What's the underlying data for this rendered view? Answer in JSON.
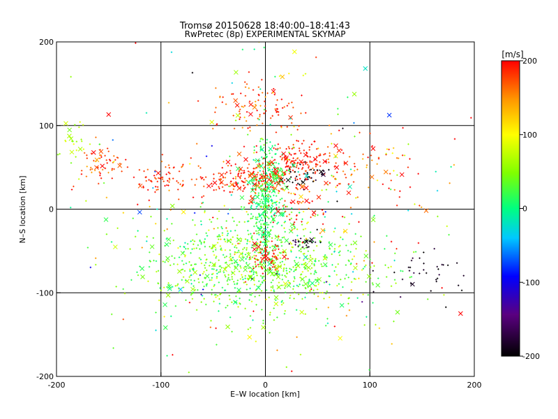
{
  "chart_data": {
    "type": "scatter",
    "title": "Tromsø 20150628 18:40:00–18:41:43",
    "subtitle": "RwPretec (8p) EXPERIMENTAL SKYMAP",
    "xlabel": "E–W location [km]",
    "ylabel": "N–S location [km]",
    "xlim": [
      -200,
      200
    ],
    "ylim": [
      -200,
      200
    ],
    "xticks": [
      -200,
      -100,
      0,
      100,
      200
    ],
    "yticks": [
      -200,
      -100,
      0,
      100,
      200
    ],
    "grid": true,
    "colorbar": {
      "label": "[m/s]",
      "min": -200,
      "max": 200,
      "ticks": [
        200,
        100,
        0,
        -100,
        -200
      ],
      "colormap": [
        "#000000",
        "#5a0080",
        "#0000ff",
        "#00c8ff",
        "#00ff80",
        "#80ff00",
        "#ffff00",
        "#ff9600",
        "#ff0000"
      ]
    },
    "markers": {
      "small": "+",
      "large": "x"
    },
    "clusters": [
      {
        "cx": -5,
        "cy": -65,
        "sx": 55,
        "sy": 30,
        "n": 900,
        "v": 40,
        "vs": 25
      },
      {
        "cx": 0,
        "cy": 10,
        "sx": 8,
        "sy": 35,
        "n": 350,
        "v": 10,
        "vs": 15
      },
      {
        "cx": 30,
        "cy": 60,
        "sx": 20,
        "sy": 12,
        "n": 160,
        "v": 190,
        "vs": 15
      },
      {
        "cx": -15,
        "cy": 35,
        "sx": 25,
        "sy": 10,
        "n": 180,
        "v": 185,
        "vs": 20
      },
      {
        "cx": -5,
        "cy": 120,
        "sx": 20,
        "sy": 15,
        "n": 90,
        "v": 180,
        "vs": 20
      },
      {
        "cx": -100,
        "cy": 35,
        "sx": 15,
        "sy": 12,
        "n": 70,
        "v": 185,
        "vs": 20
      },
      {
        "cx": -160,
        "cy": 60,
        "sx": 12,
        "sy": 12,
        "n": 55,
        "v": 180,
        "vs": 25
      },
      {
        "cx": 0,
        "cy": -55,
        "sx": 8,
        "sy": 10,
        "n": 70,
        "v": 195,
        "vs": 10
      },
      {
        "cx": 40,
        "cy": 40,
        "sx": 10,
        "sy": 8,
        "n": 40,
        "v": -195,
        "vs": 10
      },
      {
        "cx": 155,
        "cy": -80,
        "sx": 20,
        "sy": 15,
        "n": 35,
        "v": -190,
        "vs": 10
      },
      {
        "cx": -185,
        "cy": 80,
        "sx": 8,
        "sy": 10,
        "n": 25,
        "v": 70,
        "vs": 20
      },
      {
        "cx": 100,
        "cy": 40,
        "sx": 25,
        "sy": 25,
        "n": 60,
        "v": 180,
        "vs": 30
      },
      {
        "cx": 30,
        "cy": 5,
        "sx": 15,
        "sy": 15,
        "n": 60,
        "v": 180,
        "vs": 30
      },
      {
        "cx": 35,
        "cy": -40,
        "sx": 8,
        "sy": 5,
        "n": 25,
        "v": -190,
        "vs": 15
      },
      {
        "cx": 12,
        "cy": 42,
        "sx": 5,
        "sy": 4,
        "n": 30,
        "v": 20,
        "vs": 5
      },
      {
        "cx": 0,
        "cy": 0,
        "sx": 100,
        "sy": 100,
        "n": 300,
        "v": 80,
        "vs": 110
      }
    ]
  }
}
